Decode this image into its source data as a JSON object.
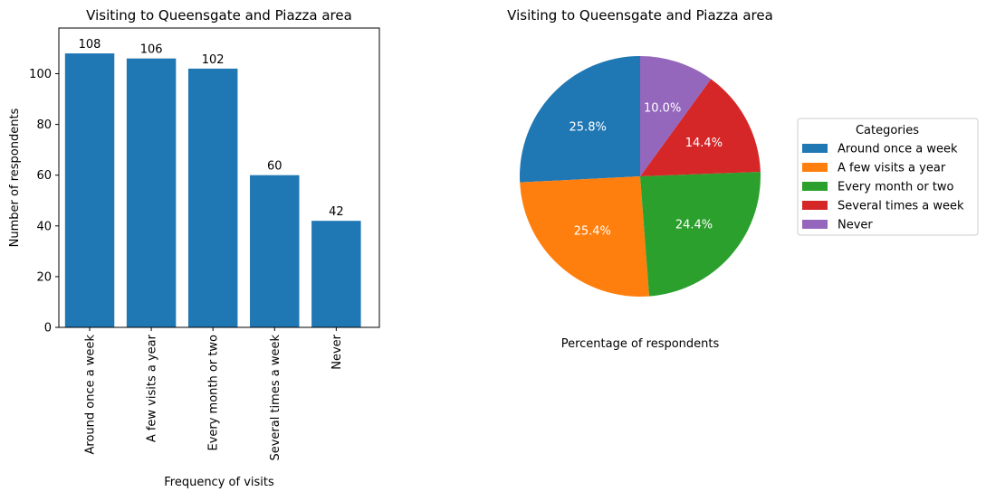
{
  "chart_data": [
    {
      "type": "bar",
      "title": "Visiting to Queensgate and Piazza area",
      "xlabel": "Frequency of visits",
      "ylabel": "Number of respondents",
      "categories": [
        "Around once a week",
        "A few visits a year",
        "Every month or two",
        "Several times a week",
        "Never"
      ],
      "values": [
        108,
        106,
        102,
        60,
        42
      ],
      "ylim": [
        0,
        118
      ],
      "yticks": [
        0,
        20,
        40,
        60,
        80,
        100
      ],
      "bar_color": "#1f77b4",
      "grid": false
    },
    {
      "type": "pie",
      "title": "Visiting to Queensgate and Piazza area",
      "xlabel": "Percentage of respondents",
      "categories": [
        "Around once a week",
        "A few visits a year",
        "Every month or two",
        "Several times a week",
        "Never"
      ],
      "values": [
        25.8,
        25.4,
        24.4,
        14.4,
        10.0
      ],
      "labels": [
        "25.8%",
        "25.4%",
        "24.4%",
        "14.4%",
        "10.0%"
      ],
      "colors": [
        "#1f77b4",
        "#ff7f0e",
        "#2ca02c",
        "#d62728",
        "#9467bd"
      ],
      "legend_title": "Categories",
      "legend_position": "right"
    }
  ]
}
